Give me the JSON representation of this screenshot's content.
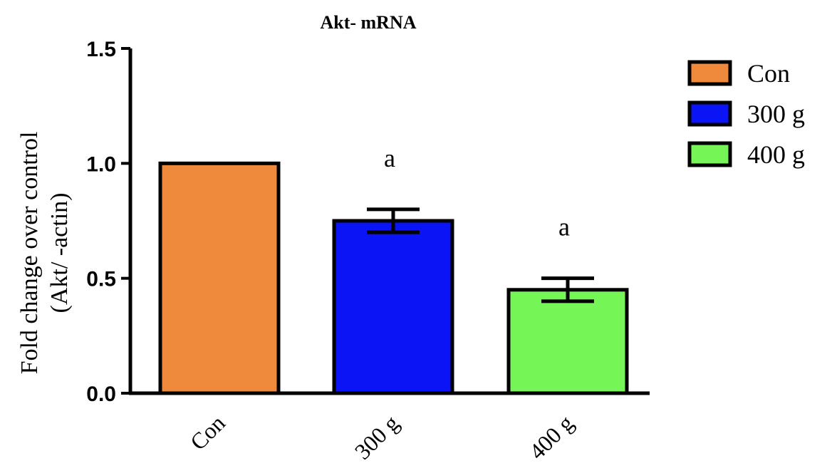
{
  "chart_data": {
    "type": "bar",
    "title": "Akt- mRNA",
    "ylabel_lines": [
      "Fold change over control",
      "(Akt/  -actin)"
    ],
    "xlabel": "",
    "ylim": [
      0,
      1.5
    ],
    "yticks": [
      "0.0",
      "0.5",
      "1.0",
      "1.5"
    ],
    "categories": [
      "Con",
      "300  g",
      "400  g"
    ],
    "values": [
      1.0,
      0.75,
      0.45
    ],
    "errors": [
      0,
      0.05,
      0.05
    ],
    "colors": [
      "#ef8a3c",
      "#0a14f5",
      "#76f557"
    ],
    "annotations": [
      "",
      "a",
      "a"
    ],
    "legend": {
      "position": "right",
      "entries": [
        "Con",
        "300  g",
        "400  g"
      ]
    },
    "grid": false
  }
}
